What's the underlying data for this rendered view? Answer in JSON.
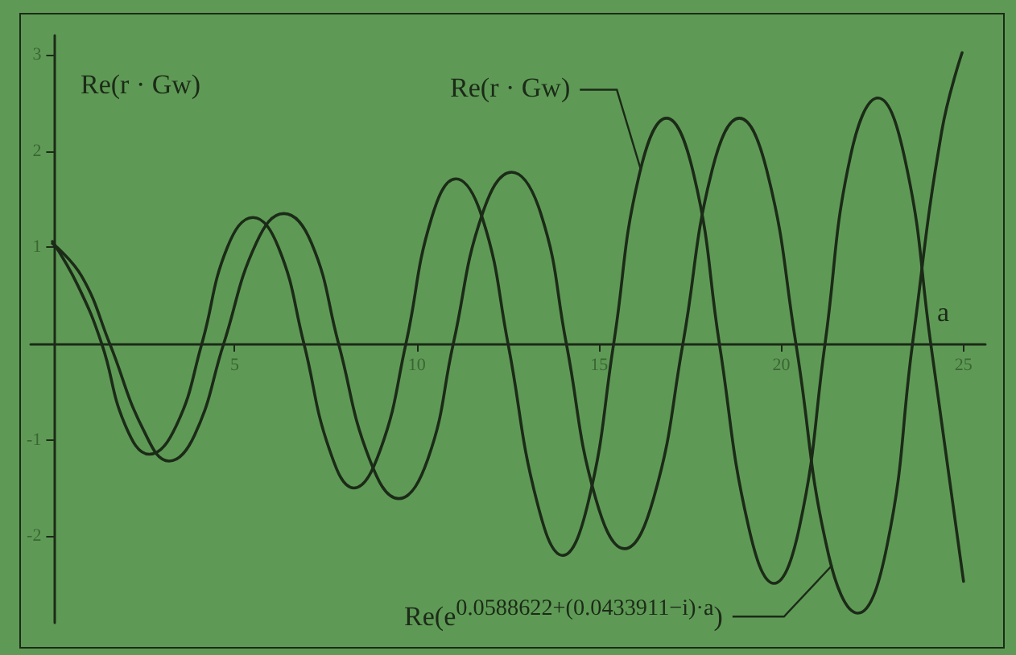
{
  "chart_data": {
    "type": "line",
    "ylabel": "Re(r · Gw)",
    "xlabel": "a",
    "xlim": [
      -0.6,
      25.6
    ],
    "ylim": [
      -2.9,
      3.2
    ],
    "xticks": [
      5,
      10,
      15,
      20,
      25
    ],
    "yticks": [
      -2,
      -1,
      1,
      2,
      3
    ],
    "grid": false,
    "marker": "none",
    "line_style": "solid",
    "annotations": [
      {
        "text": "Re(r · Gw)",
        "x": 16.15,
        "y": 1.8
      },
      {
        "text": "Re(e$^{0.0588622+(0.0433911−i)·a}$)",
        "x": 21.4,
        "y": -2.3
      }
    ],
    "series": [
      {
        "color": "#1c2a18",
        "x": [
          0,
          0.7,
          1.35,
          2.0,
          2.66,
          3.4,
          4.1,
          4.8,
          5.5,
          6.2,
          6.9,
          7.6,
          8.27,
          9.0,
          9.7,
          10.4,
          11.07,
          11.8,
          12.5,
          13.3,
          14.0,
          14.7,
          15.4,
          16.1,
          16.85,
          17.6,
          18.3,
          19.1,
          19.8,
          20.5,
          21.2,
          21.9,
          22.65,
          23.4,
          24.1,
          25.0
        ],
        "values": [
          1.06,
          0.6,
          0,
          -0.85,
          -1.15,
          -0.85,
          0,
          1.0,
          1.31,
          1.0,
          0,
          -1.1,
          -1.5,
          -1.1,
          0,
          1.3,
          1.71,
          1.3,
          0,
          -1.65,
          -2.2,
          -1.65,
          0,
          1.75,
          2.34,
          1.75,
          0,
          -1.9,
          -2.49,
          -1.9,
          0,
          1.95,
          2.55,
          1.9,
          0,
          -2.47
        ]
      },
      {
        "color": "#1c2a18",
        "x": [
          0,
          0.8,
          1.57,
          2.5,
          3.2,
          3.9,
          4.7,
          5.6,
          6.35,
          7.1,
          7.85,
          8.7,
          9.5,
          10.3,
          11.0,
          11.8,
          12.6,
          13.4,
          14.1,
          14.9,
          15.7,
          16.5,
          17.3,
          18.1,
          18.85,
          19.6,
          20.4,
          21.3,
          22.1,
          22.9,
          23.6,
          24.4,
          24.96
        ],
        "values": [
          1.04,
          0.7,
          0,
          -0.9,
          -1.22,
          -0.95,
          0,
          1.05,
          1.35,
          1.05,
          0,
          -1.2,
          -1.61,
          -1.2,
          0,
          1.35,
          1.78,
          1.35,
          0,
          -1.6,
          -2.13,
          -1.6,
          0,
          1.8,
          2.34,
          1.8,
          0,
          -2.2,
          -2.8,
          -2.1,
          0,
          2.2,
          3.02
        ]
      }
    ]
  }
}
